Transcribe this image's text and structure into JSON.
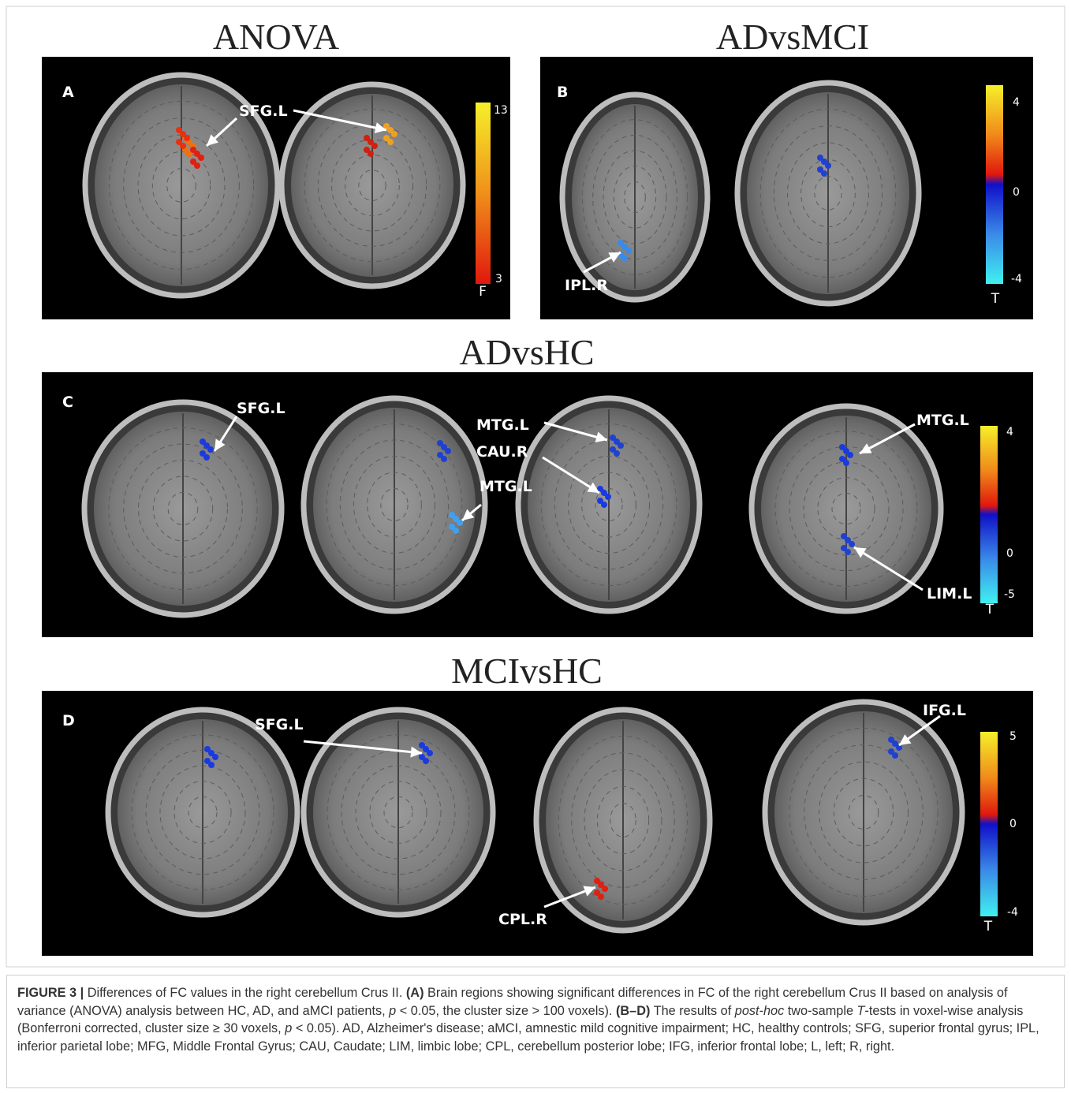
{
  "panels": [
    {
      "title": "ANOVA",
      "letter": "A",
      "labels": [
        "SFG.L"
      ],
      "colorbar": {
        "ticks": [
          13,
          3
        ],
        "label": "F"
      }
    },
    {
      "title": "ADvsMCI",
      "letter": "B",
      "labels": [
        "IPL.R"
      ],
      "colorbar": {
        "ticks": [
          4,
          0,
          -4
        ],
        "label": "T"
      }
    },
    {
      "title": "ADvsHC",
      "letter": "C",
      "labels": [
        "SFG.L",
        "MTG.L",
        "CAU.R",
        "MTG.L",
        "MTG.L",
        "LIM.L"
      ],
      "colorbar": {
        "ticks": [
          4,
          0,
          -5
        ],
        "label": "T"
      }
    },
    {
      "title": "MCIvsHC",
      "letter": "D",
      "labels": [
        "SFG.L",
        "CPL.R",
        "IFG.L"
      ],
      "colorbar": {
        "ticks": [
          5,
          0,
          -4
        ],
        "label": "T"
      }
    }
  ],
  "caption": [
    {
      "text": "FIGURE 3 |",
      "style": "bold"
    },
    {
      "text": " Differences of FC values in the right cerebellum Crus II. ",
      "style": "normal"
    },
    {
      "text": "(A)",
      "style": "bold"
    },
    {
      "text": " Brain regions showing significant differences in FC of the right cerebellum Crus II based on analysis of variance (ANOVA) analysis between HC, AD, and aMCI patients, ",
      "style": "normal"
    },
    {
      "text": "p",
      "style": "italic"
    },
    {
      "text": " < 0.05, the cluster size > 100 voxels). ",
      "style": "normal"
    },
    {
      "text": "(B–D)",
      "style": "bold"
    },
    {
      "text": " The results of ",
      "style": "normal"
    },
    {
      "text": "post-hoc",
      "style": "italic"
    },
    {
      "text": " two-sample ",
      "style": "normal"
    },
    {
      "text": "T",
      "style": "italic"
    },
    {
      "text": "-tests in voxel-wise analysis (Bonferroni corrected, cluster size ≥ 30 voxels, ",
      "style": "normal"
    },
    {
      "text": "p",
      "style": "italic"
    },
    {
      "text": " < 0.05). AD, Alzheimer's disease; aMCI, amnestic mild cognitive impairment; HC, healthy controls; SFG, superior frontal gyrus; IPL, inferior parietal lobe; MFG, Middle Frontal Gyrus; CAU, Caudate; LIM, limbic lobe; CPL, cerebellum posterior lobe; IFG, inferior frontal lobe; L, left; R, right.",
      "style": "normal"
    }
  ]
}
